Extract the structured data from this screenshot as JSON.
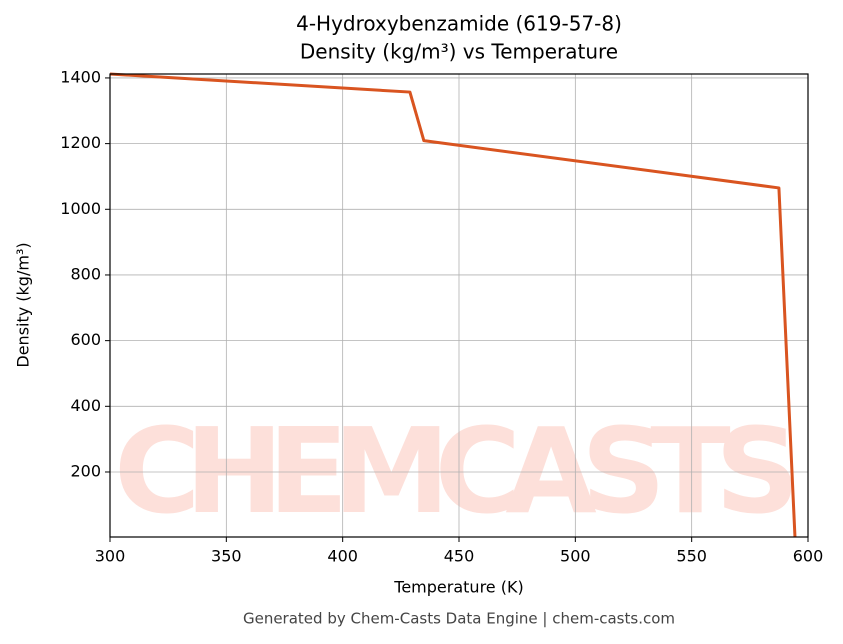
{
  "chart_data": {
    "type": "line",
    "title": "4-Hydroxybenzamide (619-57-8)",
    "subtitle": "Density (kg/m³) vs Temperature",
    "x_label": "Temperature (K)",
    "y_label": "Density (kg/m³)",
    "footer": "Generated by Chem-Casts Data Engine | chem-casts.com",
    "watermark": "CHEMCASTS",
    "x": [
      300,
      428.9,
      434.9,
      587.5,
      594.4
    ],
    "series": [
      {
        "name": "Density",
        "color": "#d95420",
        "values": [
          1412,
          1357,
          1209,
          1065,
          2
        ]
      }
    ],
    "xlim": [
      300,
      600
    ],
    "xticks": [
      300,
      350,
      400,
      450,
      500,
      550,
      600
    ],
    "ylim": [
      2,
      1412
    ],
    "yticks": [
      200,
      400,
      600,
      800,
      1000,
      1200,
      1400
    ],
    "grid": true
  }
}
